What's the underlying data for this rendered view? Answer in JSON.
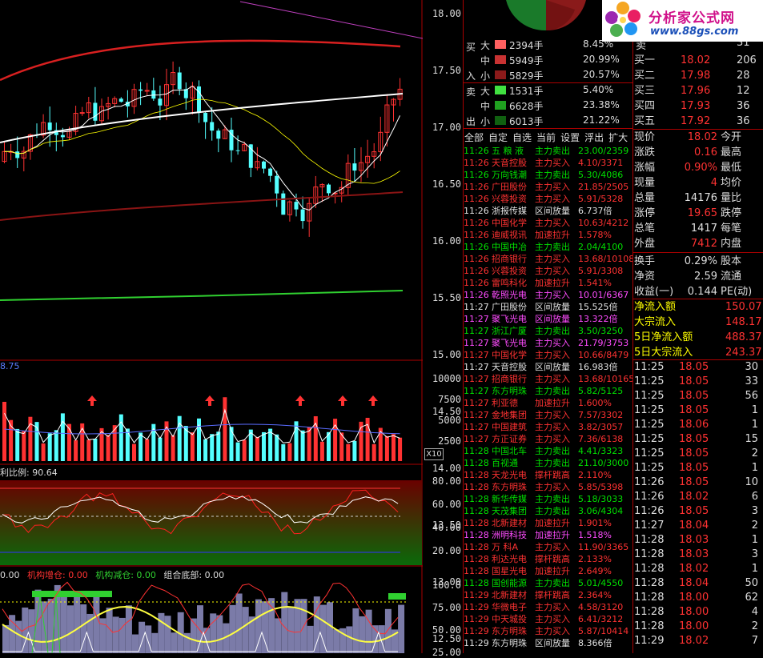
{
  "main_chart": {
    "price_axis": [
      "18.00",
      "17.50",
      "17.00",
      "16.50",
      "16.00",
      "15.50",
      "15.00",
      "14.50",
      "14.00",
      "13.50",
      "13.00",
      "12.50"
    ],
    "partial_label": "8.75"
  },
  "volume_panel": {
    "axis": [
      "10000",
      "7500",
      "5000",
      "2500"
    ],
    "unit": "X10"
  },
  "ratio_panel": {
    "label": "利比例: 90.64",
    "axis": [
      "80.00",
      "60.00",
      "40.00",
      "20.00"
    ]
  },
  "inst_panel": {
    "lead": "0.00",
    "add_label": "机构增仓: 0.00",
    "reduce_label": "机构减仓: 0.00",
    "bottom_label": "组合底部: 0.00",
    "axis": [
      "100.0",
      "75.00",
      "50.00",
      "25.00"
    ]
  },
  "order_book": {
    "buy_side": "买",
    "buy_side2": "入",
    "sell_side": "卖",
    "sell_side2": "出",
    "rows": [
      {
        "size": "大",
        "lots": "2394手",
        "pct": "8.45%",
        "color": "#ff6060"
      },
      {
        "size": "中",
        "lots": "5949手",
        "pct": "20.99%",
        "color": "#c83232"
      },
      {
        "size": "小",
        "lots": "5829手",
        "pct": "20.57%",
        "color": "#8c1a1a"
      },
      {
        "size": "大",
        "lots": "1531手",
        "pct": "5.40%",
        "color": "#40e040"
      },
      {
        "size": "中",
        "lots": "6628手",
        "pct": "23.38%",
        "color": "#20a020"
      },
      {
        "size": "小",
        "lots": "6013手",
        "pct": "21.22%",
        "color": "#106010"
      }
    ]
  },
  "tabs": [
    "全部",
    "自定",
    "自选",
    "当前",
    "设置",
    "浮出",
    "扩大"
  ],
  "ticks": [
    {
      "time": "11:26",
      "name": "五 粮 液",
      "type": "主力卖出",
      "val": "23.00/2359",
      "color": "green"
    },
    {
      "time": "11:26",
      "name": "天音控股",
      "type": "主力买入",
      "val": "4.10/3371",
      "color": "red"
    },
    {
      "time": "11:26",
      "name": "万向钱潮",
      "type": "主力卖出",
      "val": "5.30/4086",
      "color": "green"
    },
    {
      "time": "11:26",
      "name": "广田股份",
      "type": "主力买入",
      "val": "21.85/2505",
      "color": "red"
    },
    {
      "time": "11:26",
      "name": "兴蓉投资",
      "type": "主力买入",
      "val": "5.91/5328",
      "color": "red"
    },
    {
      "time": "11:26",
      "name": "浙报传媒",
      "type": "区间放量",
      "val": "6.737倍",
      "color": "white"
    },
    {
      "time": "11:26",
      "name": "中国化学",
      "type": "主力买入",
      "val": "10.63/4212",
      "color": "red"
    },
    {
      "time": "11:26",
      "name": "迪威视讯",
      "type": "加速拉升",
      "val": "1.578%",
      "color": "red"
    },
    {
      "time": "11:26",
      "name": "中国中冶",
      "type": "主力卖出",
      "val": "2.04/4100",
      "color": "green"
    },
    {
      "time": "11:26",
      "name": "招商银行",
      "type": "主力买入",
      "val": "13.68/10108",
      "color": "red"
    },
    {
      "time": "11:26",
      "name": "兴蓉投资",
      "type": "主力买入",
      "val": "5.91/3308",
      "color": "red"
    },
    {
      "time": "11:26",
      "name": "雷鸣科化",
      "type": "加速拉升",
      "val": "1.541%",
      "color": "red"
    },
    {
      "time": "11:26",
      "name": "乾照光电",
      "type": "主力买入",
      "val": "10.01/6367",
      "color": "purple"
    },
    {
      "time": "11:27",
      "name": "广田股份",
      "type": "区间放量",
      "val": "15.525倍",
      "color": "white"
    },
    {
      "time": "11:27",
      "name": "聚飞光电",
      "type": "区间放量",
      "val": "13.322倍",
      "color": "purple"
    },
    {
      "time": "11:27",
      "name": "浙江广厦",
      "type": "主力卖出",
      "val": "3.50/3250",
      "color": "green"
    },
    {
      "time": "11:27",
      "name": "聚飞光电",
      "type": "主力买入",
      "val": "21.79/3753",
      "color": "purple"
    },
    {
      "time": "11:27",
      "name": "中国化学",
      "type": "主力买入",
      "val": "10.66/8479",
      "color": "red"
    },
    {
      "time": "11:27",
      "name": "天音控股",
      "type": "区间放量",
      "val": "16.983倍",
      "color": "white"
    },
    {
      "time": "11:27",
      "name": "招商银行",
      "type": "主力买入",
      "val": "13.68/10165",
      "color": "red"
    },
    {
      "time": "11:27",
      "name": "东方明珠",
      "type": "主力卖出",
      "val": "5.82/5125",
      "color": "green"
    },
    {
      "time": "11:27",
      "name": "利亚德",
      "type": "加速拉升",
      "val": "1.600%",
      "color": "red"
    },
    {
      "time": "11:27",
      "name": "金地集团",
      "type": "主力买入",
      "val": "7.57/3302",
      "color": "red"
    },
    {
      "time": "11:27",
      "name": "中国建筑",
      "type": "主力买入",
      "val": "3.82/3057",
      "color": "red"
    },
    {
      "time": "11:27",
      "name": "方正证券",
      "type": "主力买入",
      "val": "7.36/6138",
      "color": "red"
    },
    {
      "time": "11:28",
      "name": "中国北车",
      "type": "主力卖出",
      "val": "4.41/3323",
      "color": "green"
    },
    {
      "time": "11:28",
      "name": "百视通",
      "type": "主力卖出",
      "val": "21.10/3000",
      "color": "green"
    },
    {
      "time": "11:28",
      "name": "天龙光电",
      "type": "撑杆跳高",
      "val": "2.110%",
      "color": "red"
    },
    {
      "time": "11:28",
      "name": "东方明珠",
      "type": "主力买入",
      "val": "5.85/5398",
      "color": "red"
    },
    {
      "time": "11:28",
      "name": "新华传媒",
      "type": "主力卖出",
      "val": "5.18/3033",
      "color": "green"
    },
    {
      "time": "11:28",
      "name": "天茂集团",
      "type": "主力卖出",
      "val": "3.06/4304",
      "color": "green"
    },
    {
      "time": "11:28",
      "name": "北新建材",
      "type": "加速拉升",
      "val": "1.901%",
      "color": "red"
    },
    {
      "time": "11:28",
      "name": "洲明科技",
      "type": "加速拉升",
      "val": "1.518%",
      "color": "purple"
    },
    {
      "time": "11:28",
      "name": "万  科A",
      "type": "主力买入",
      "val": "11.90/3365",
      "color": "red"
    },
    {
      "time": "11:28",
      "name": "利达光电",
      "type": "撑杆跳高",
      "val": "2.133%",
      "color": "red"
    },
    {
      "time": "11:28",
      "name": "国星光电",
      "type": "加速拉升",
      "val": "2.649%",
      "color": "red"
    },
    {
      "time": "11:28",
      "name": "国创能源",
      "type": "主力卖出",
      "val": "5.01/4550",
      "color": "green"
    },
    {
      "time": "11:29",
      "name": "北新建材",
      "type": "撑杆跳高",
      "val": "2.364%",
      "color": "red"
    },
    {
      "time": "11:29",
      "name": "华微电子",
      "type": "主力买入",
      "val": "4.58/3120",
      "color": "red"
    },
    {
      "time": "11:29",
      "name": "中天城投",
      "type": "主力买入",
      "val": "6.41/3212",
      "color": "red"
    },
    {
      "time": "11:29",
      "name": "东方明珠",
      "type": "主力买入",
      "val": "5.87/10414",
      "color": "red"
    },
    {
      "time": "11:29",
      "name": "东方明珠",
      "type": "区间放量",
      "val": "8.366倍",
      "color": "white"
    }
  ],
  "logo": {
    "title": "分析家公式网",
    "url": "www.88gs.com"
  },
  "quote_top": {
    "top_partial": "卖",
    "top_num": "31"
  },
  "bids": [
    {
      "label": "买一",
      "price": "18.02",
      "vol": "206"
    },
    {
      "label": "买二",
      "price": "17.98",
      "vol": "28"
    },
    {
      "label": "买三",
      "price": "17.96",
      "vol": "12"
    },
    {
      "label": "买四",
      "price": "17.93",
      "vol": "36"
    },
    {
      "label": "买五",
      "price": "17.92",
      "vol": "36"
    }
  ],
  "stats": [
    {
      "k": "现价",
      "v": "18.02",
      "vc": "red",
      "k2": "今开"
    },
    {
      "k": "涨跌",
      "v": "0.16",
      "vc": "red",
      "k2": "最高"
    },
    {
      "k": "涨幅",
      "v": "0.90%",
      "vc": "red",
      "k2": "最低"
    },
    {
      "k": "现量",
      "v": "4",
      "vc": "red",
      "k2": "均价"
    },
    {
      "k": "总量",
      "v": "14176",
      "vc": "white",
      "k2": "量比"
    },
    {
      "k": "涨停",
      "v": "19.65",
      "vc": "red",
      "k2": "跌停"
    },
    {
      "k": "总笔",
      "v": "1417",
      "vc": "white",
      "k2": "每笔"
    },
    {
      "k": "外盘",
      "v": "7412",
      "vc": "red",
      "k2": "内盘"
    }
  ],
  "stats2": [
    {
      "k": "换手",
      "v": "0.29%",
      "k2": "股本"
    },
    {
      "k": "净资",
      "v": "2.59",
      "k2": "流通"
    },
    {
      "k": "收益(一)",
      "v": "0.144",
      "k2": "PE(动)"
    }
  ],
  "flows": [
    {
      "k": "净流入额",
      "v": "150.07"
    },
    {
      "k": "大宗流入",
      "v": "148.17"
    },
    {
      "k": "5日净流入额",
      "v": "488.37"
    },
    {
      "k": "5日大宗流入",
      "v": "243.37"
    }
  ],
  "trades": [
    {
      "time": "11:25",
      "price": "18.05",
      "vol": "30"
    },
    {
      "time": "11:25",
      "price": "18.05",
      "vol": "33"
    },
    {
      "time": "11:25",
      "price": "18.05",
      "vol": "56"
    },
    {
      "time": "11:25",
      "price": "18.05",
      "vol": "1"
    },
    {
      "time": "11:25",
      "price": "18.06",
      "vol": "1"
    },
    {
      "time": "11:25",
      "price": "18.05",
      "vol": "15"
    },
    {
      "time": "11:25",
      "price": "18.05",
      "vol": "2"
    },
    {
      "time": "11:25",
      "price": "18.05",
      "vol": "1"
    },
    {
      "time": "11:26",
      "price": "18.05",
      "vol": "10"
    },
    {
      "time": "11:26",
      "price": "18.02",
      "vol": "6"
    },
    {
      "time": "11:26",
      "price": "18.05",
      "vol": "3"
    },
    {
      "time": "11:27",
      "price": "18.04",
      "vol": "2"
    },
    {
      "time": "11:28",
      "price": "18.03",
      "vol": "1"
    },
    {
      "time": "11:28",
      "price": "18.03",
      "vol": "3"
    },
    {
      "time": "11:28",
      "price": "18.02",
      "vol": "1"
    },
    {
      "time": "11:28",
      "price": "18.04",
      "vol": "50"
    },
    {
      "time": "11:28",
      "price": "18.00",
      "vol": "62"
    },
    {
      "time": "11:28",
      "price": "18.00",
      "vol": "4"
    },
    {
      "time": "11:28",
      "price": "18.00",
      "vol": "2"
    },
    {
      "time": "11:29",
      "price": "18.02",
      "vol": "7"
    }
  ],
  "colors": {
    "up": "#ff3232",
    "down": "#54ffff",
    "grid": "#aa0000",
    "ma_white": "#ffffff",
    "ma_red": "#d82020",
    "ma_green": "#30d030"
  }
}
